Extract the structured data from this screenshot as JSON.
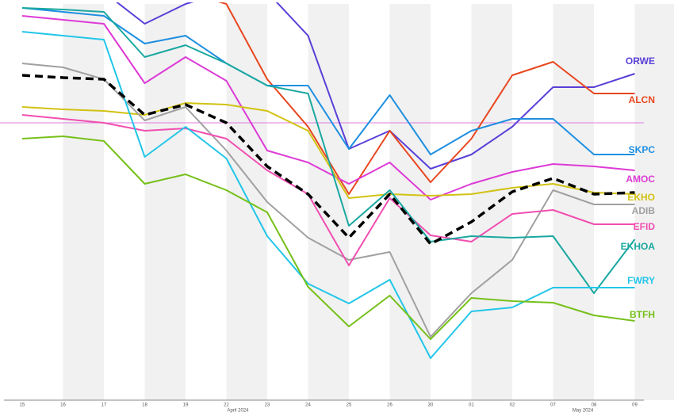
{
  "chart_data": {
    "type": "line",
    "categories": [
      "15",
      "16",
      "17",
      "18",
      "19",
      "22",
      "23",
      "24",
      "25",
      "26",
      "30",
      "01",
      "02",
      "07",
      "08",
      "09"
    ],
    "annotations": [
      "April 2024",
      "May 2024"
    ],
    "ylim": [
      65,
      115
    ],
    "reference_line": 100,
    "series": [
      {
        "name": "ORWE",
        "color": "#5a3fd8",
        "values": [
          116.5,
          116.5,
          116.5,
          112.5,
          115,
          116.5,
          116.5,
          111,
          96.7,
          99,
          94.2,
          96,
          99.5,
          104.5,
          104.5,
          106.2
        ]
      },
      {
        "name": "ALCN",
        "color": "#e8461e",
        "values": [
          116.5,
          116.5,
          116.5,
          116.5,
          116.5,
          115,
          105.5,
          99.5,
          91,
          99,
          92.5,
          98,
          106,
          107.7,
          103.7,
          103.7
        ]
      },
      {
        "name": "SKPC",
        "color": "#1e8fe0",
        "values": [
          114.5,
          114,
          113.5,
          110,
          111,
          107.5,
          104.7,
          104.7,
          96.7,
          103.5,
          96,
          99,
          100.5,
          100.5,
          96,
          96
        ]
      },
      {
        "name": "AMOC",
        "color": "#dd3ad6",
        "values": [
          113.5,
          113,
          112.5,
          105,
          108.3,
          105.3,
          96.5,
          95,
          92.3,
          95,
          90.3,
          92.3,
          93.8,
          94.8,
          94.5,
          94
        ]
      },
      {
        "name": "EKHO",
        "color": "#d2c213",
        "values": [
          102,
          101.7,
          101.5,
          101,
          102.5,
          102.3,
          101.5,
          99,
          90.5,
          91,
          90.8,
          91,
          91.8,
          92.3,
          91.2,
          91
        ]
      },
      {
        "name": "ADIB",
        "color": "#a0a0a0",
        "values": [
          107.5,
          107,
          105.5,
          100.3,
          102,
          96.5,
          90,
          85.5,
          82.7,
          83.7,
          73,
          78.5,
          82.7,
          91.5,
          89.7,
          89.7
        ]
      },
      {
        "name": "EFID",
        "color": "#f04fb0",
        "values": [
          101,
          100.5,
          100,
          99,
          99.3,
          98,
          94,
          91,
          82,
          90.5,
          85.8,
          85,
          88.5,
          89,
          87.2,
          87.2
        ]
      },
      {
        "name": "EKHOA",
        "color": "#1aa8a0",
        "values": [
          114.5,
          114.3,
          114,
          108.3,
          109.8,
          107.5,
          104.7,
          103.7,
          87,
          91.5,
          85,
          85.7,
          85.5,
          85.7,
          78.5,
          85.3
        ]
      },
      {
        "name": "FWRY",
        "color": "#22c6e8",
        "values": [
          111.5,
          111,
          110.5,
          95.7,
          99.5,
          95.5,
          85.7,
          79.7,
          77.2,
          80.2,
          70.3,
          76.2,
          76.7,
          79.2,
          79.2,
          79.2
        ]
      },
      {
        "name": "BTFH",
        "color": "#76c01a",
        "values": [
          98,
          98.3,
          97.7,
          92.3,
          93.5,
          91.5,
          88.7,
          79.3,
          74.3,
          78.2,
          72.7,
          77.9,
          77.5,
          77.3,
          75.7,
          75
        ]
      },
      {
        "color": "#000000",
        "style": "dashed",
        "values": [
          106,
          105.7,
          105.5,
          101,
          102.3,
          100,
          94.5,
          91,
          85.5,
          91,
          84.7,
          87.5,
          91.3,
          93,
          91,
          91.2
        ]
      }
    ]
  }
}
